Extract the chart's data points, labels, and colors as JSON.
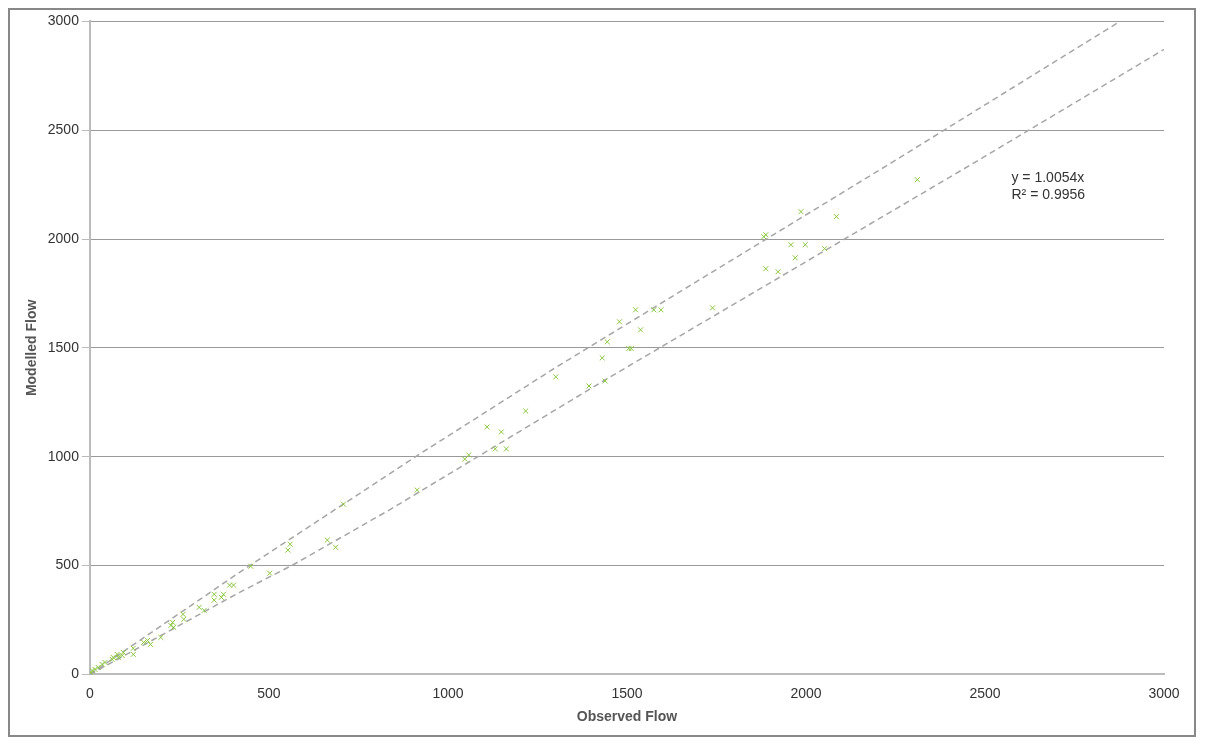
{
  "chart_data": {
    "type": "scatter",
    "xlabel": "Observed Flow",
    "ylabel": "Modelled Flow",
    "xlim": [
      0,
      3000
    ],
    "ylim": [
      0,
      3000
    ],
    "xticks": [
      0,
      500,
      1000,
      1500,
      2000,
      2500,
      3000
    ],
    "yticks": [
      0,
      500,
      1000,
      1500,
      2000,
      2500,
      3000
    ],
    "grid": "y",
    "legend": false,
    "annotations": [
      "y = 1.0054x",
      "R² = 0.9956"
    ],
    "series": [
      {
        "type": "scatter",
        "color": "#8cc63f",
        "marker": "cross",
        "x": [
          2311,
          1986,
          2085,
          1882,
          1888,
          1958,
          1998,
          2052,
          1970,
          1888,
          1922,
          1739,
          1479,
          1524,
          1538,
          1575,
          1595,
          1445,
          1505,
          1512,
          1431,
          1301,
          1394,
          1439,
          1217,
          1109,
          1149,
          1132,
          1163,
          1058,
          1047,
          914,
          708,
          663,
          686,
          553,
          559,
          449,
          502,
          390,
          401,
          347,
          373,
          347,
          367,
          305,
          319,
          260,
          262,
          231,
          226,
          234,
          198,
          161,
          150,
          169,
          121,
          121,
          93,
          79,
          62,
          42,
          23,
          6,
          76,
          34,
          14,
          65,
          90,
          3
        ],
        "values": [
          2273,
          2126,
          2103,
          2011,
          2020,
          1974,
          1974,
          1956,
          1914,
          1864,
          1850,
          1684,
          1620,
          1675,
          1583,
          1675,
          1675,
          1528,
          1497,
          1497,
          1454,
          1367,
          1325,
          1348,
          1210,
          1137,
          1114,
          1036,
          1036,
          1008,
          989,
          847,
          782,
          617,
          584,
          571,
          598,
          497,
          465,
          410,
          410,
          368,
          368,
          341,
          354,
          308,
          294,
          276,
          253,
          239,
          225,
          216,
          170,
          156,
          147,
          138,
          120,
          92,
          101,
          78,
          69,
          55,
          32,
          18,
          92,
          46,
          23,
          78,
          87,
          8
        ]
      },
      {
        "type": "line",
        "color": "#a6a6a6",
        "marker": "none",
        "line_style": "dashed",
        "x": [
          0,
          418,
          912,
          1304,
          2235,
          2877
        ],
        "values": [
          0,
          469,
          1003,
          1413,
          2347,
          3000
        ]
      },
      {
        "type": "line",
        "color": "#a6a6a6",
        "marker": "none",
        "line_style": "dashed",
        "x": [
          0,
          418,
          570,
          836,
          1434,
          2461,
          3000
        ],
        "values": [
          0,
          377,
          506,
          755,
          1348,
          2342,
          2871
        ]
      }
    ]
  }
}
